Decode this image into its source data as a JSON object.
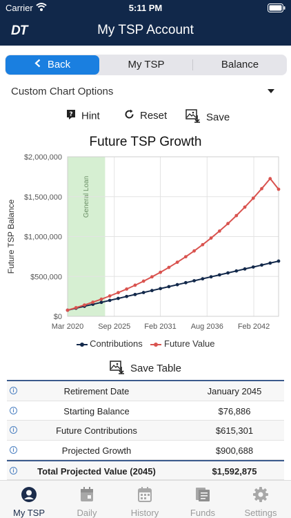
{
  "status_bar": {
    "carrier": "Carrier",
    "time": "5:11 PM"
  },
  "nav": {
    "logo": "DT",
    "title": "My TSP Account"
  },
  "segments": {
    "back": "Back",
    "my_tsp": "My TSP",
    "balance": "Balance"
  },
  "options": {
    "custom_chart": "Custom Chart Options"
  },
  "toolbar": {
    "hint": "Hint",
    "reset": "Reset",
    "save": "Save"
  },
  "chart_data": {
    "type": "line",
    "title": "Future TSP Growth",
    "ylabel": "Future TSP Balance",
    "xlabel": "",
    "x_ticks": [
      "Mar 2020",
      "Sep 2025",
      "Feb 2031",
      "Aug 2036",
      "Feb 2042"
    ],
    "y_ticks": [
      "$0",
      "$500,000",
      "$1,000,000",
      "$1,500,000",
      "$2,000,000"
    ],
    "ylim": [
      0,
      2000000
    ],
    "x_start": "Mar 2020",
    "x_end": "Jan 2045",
    "band": {
      "label": "General Loan",
      "from": "Mar 2020",
      "to": "Aug 2024",
      "color": "#d6efd2"
    },
    "series": [
      {
        "name": "Contributions",
        "color": "#13294b",
        "values": [
          76886,
          101500,
          126100,
          150700,
          175300,
          199900,
          224600,
          249200,
          273800,
          298400,
          323000,
          347600,
          372200,
          396800,
          421400,
          446000,
          470600,
          495200,
          519800,
          544400,
          569000,
          593600,
          618200,
          642800,
          667400,
          692187
        ]
      },
      {
        "name": "Future Value",
        "color": "#d9534f",
        "values": [
          76886,
          108500,
          142000,
          177500,
          215000,
          255000,
          297000,
          342000,
          390000,
          441000,
          495000,
          552000,
          613000,
          678000,
          747000,
          820000,
          898000,
          981000,
          1069000,
          1163000,
          1263000,
          1369000,
          1481000,
          1600000,
          1726000,
          1592875
        ]
      }
    ],
    "grid": true,
    "legend_position": "bottom"
  },
  "save_table": "Save Table",
  "table": {
    "rows": [
      {
        "label": "Retirement Date",
        "value": "January 2045"
      },
      {
        "label": "Starting Balance",
        "value": "$76,886"
      },
      {
        "label": "Future Contributions",
        "value": "$615,301"
      },
      {
        "label": "Projected Growth",
        "value": "$900,688"
      },
      {
        "label": "Total Projected Value (2045)",
        "value": "$1,592,875"
      }
    ]
  },
  "tabs": [
    {
      "label": "My TSP",
      "icon": "person-circle-icon",
      "active": true
    },
    {
      "label": "Daily",
      "icon": "calendar-icon",
      "active": false
    },
    {
      "label": "History",
      "icon": "calendar-grid-icon",
      "active": false
    },
    {
      "label": "Funds",
      "icon": "books-icon",
      "active": false
    },
    {
      "label": "Settings",
      "icon": "gear-icon",
      "active": false
    }
  ]
}
